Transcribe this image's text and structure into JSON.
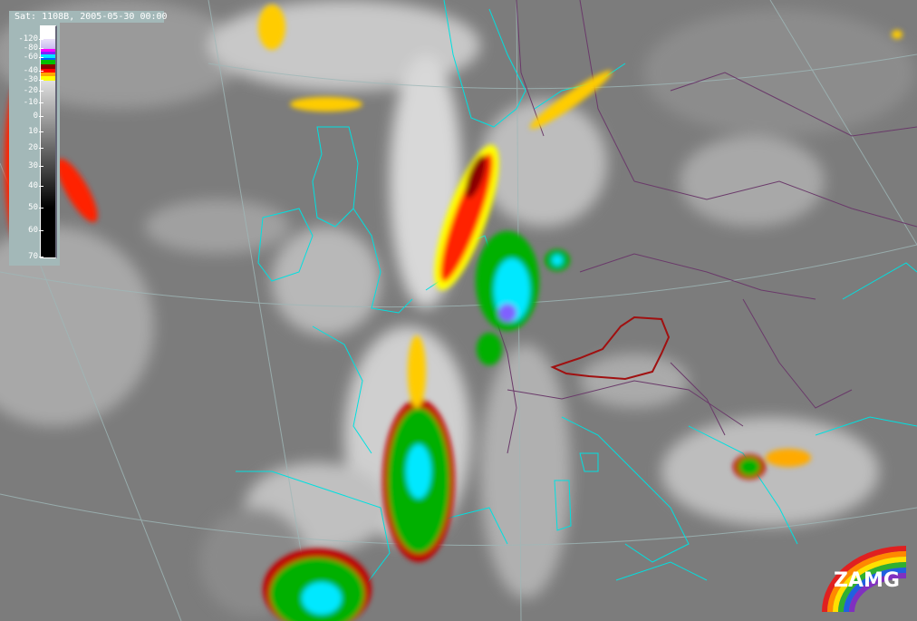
{
  "title": "Sat: 1108B, 2005-05-30 00:00",
  "legend": {
    "ticks": [
      "-120",
      "-80",
      "-60",
      "-40",
      "-30",
      "-20",
      "-10",
      "0",
      "10",
      "20",
      "30",
      "40",
      "50",
      "60",
      "70"
    ],
    "colors": {
      "white": "#ffffff",
      "magenta": "#ff00ff",
      "purple": "#8020ff",
      "cyan": "#00e8ff",
      "blue": "#0060ff",
      "green": "#00c000",
      "dark_red": "#8b0000",
      "red": "#ff0000",
      "orange": "#ffa500",
      "yellow": "#ffff00"
    }
  },
  "map": {
    "coastline_color": "#00e0e0",
    "border_color": "#6a3a6a",
    "highlight_country_color": "#a01010",
    "graticule_color": "#9fb8b8"
  },
  "logo": {
    "text": "ZAMG"
  }
}
